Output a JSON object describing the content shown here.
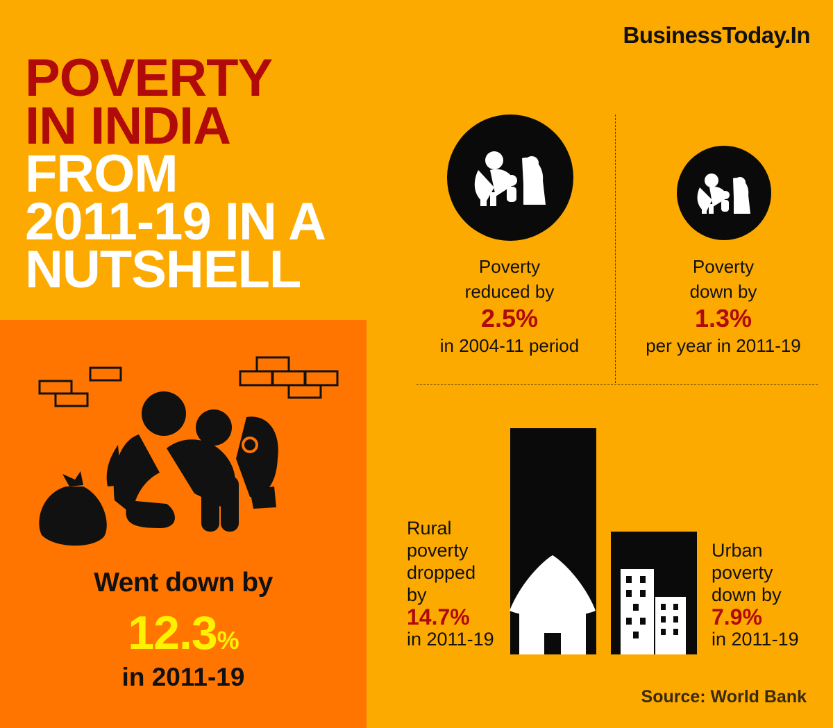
{
  "brand": "BusinessToday.In",
  "title": {
    "line1": "POVERTY",
    "line2": "IN INDIA",
    "line3": "FROM",
    "line4": "2011-19 IN A",
    "line5": "NUTSHELL"
  },
  "main_stat": {
    "label": "Went down by",
    "value": "12.3",
    "unit": "%",
    "period": "in 2011-19"
  },
  "stat_left": {
    "line1": "Poverty",
    "line2": "reduced by",
    "value": "2.5%",
    "period": "in 2004-11 period"
  },
  "stat_right": {
    "line1": "Poverty",
    "line2": "down by",
    "value": "1.3%",
    "period": "per year in 2011-19"
  },
  "rural": {
    "line1": "Rural",
    "line2": "poverty",
    "line3": "dropped",
    "line4": "by",
    "value": "14.7%",
    "period": "in 2011-19"
  },
  "urban": {
    "line1": "Urban",
    "line2": "poverty",
    "line3": "down by",
    "value": "7.9%",
    "period": "in 2011-19"
  },
  "source": "Source: World Bank",
  "icons": [
    "family-icon",
    "hut-icon",
    "buildings-icon",
    "bag-icon",
    "bricks-icon"
  ],
  "colors": {
    "background": "#FDAA00",
    "panel": "#FF7500",
    "title_red": "#B00A0A",
    "highlight_yellow": "#FFF200"
  }
}
